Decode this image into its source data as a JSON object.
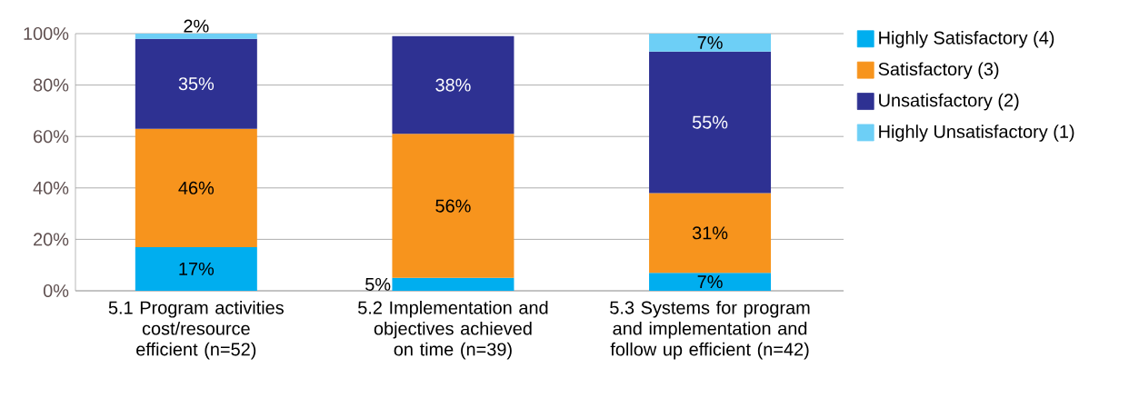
{
  "chart_data": {
    "type": "bar",
    "stacked": true,
    "categories": [
      "5.1 Program activities cost/resource efficient (n=52)",
      "5.2 Implementation and objectives achieved on time (n=39)",
      "5.3 Systems for program and implementation and follow up efficient (n=42)"
    ],
    "series": [
      {
        "name": "Highly Satisfactory (4)",
        "color": "#00aeef",
        "values": [
          17,
          5,
          7
        ],
        "value_labels": [
          "17%",
          "5%",
          "7%"
        ]
      },
      {
        "name": "Satisfactory (3)",
        "color": "#f7941d",
        "values": [
          46,
          56,
          31
        ],
        "value_labels": [
          "46%",
          "56%",
          "31%"
        ]
      },
      {
        "name": "Unsatisfactory (2)",
        "color": "#2e3192",
        "values": [
          35,
          38,
          55
        ],
        "value_labels": [
          "35%",
          "38%",
          "55%"
        ]
      },
      {
        "name": "Highly Unsatisfactory (1)",
        "color": "#6dcff6",
        "values": [
          2,
          null,
          7
        ],
        "value_labels": [
          "2%",
          null,
          "7%"
        ]
      }
    ],
    "ylim": [
      0,
      100
    ],
    "yticks": [
      {
        "value": 0,
        "label": "0%"
      },
      {
        "value": 20,
        "label": "20%"
      },
      {
        "value": 40,
        "label": "40%"
      },
      {
        "value": 60,
        "label": "60%"
      },
      {
        "value": 80,
        "label": "80%"
      },
      {
        "value": 100,
        "label": "100%"
      }
    ],
    "grid": "y",
    "legend": "top right"
  }
}
